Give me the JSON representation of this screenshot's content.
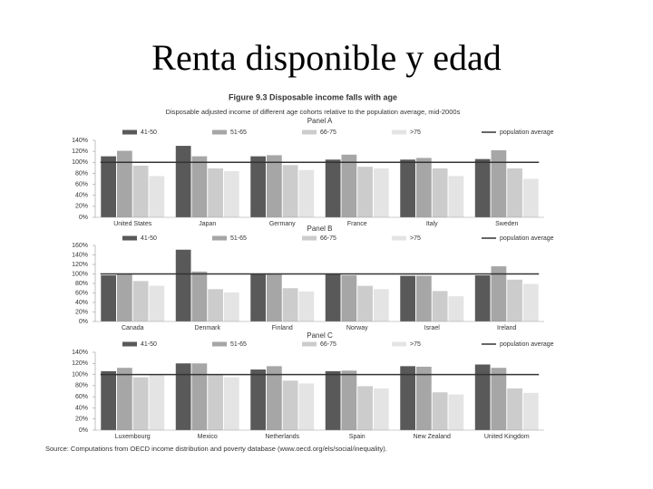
{
  "slide_title": "Renta disponible y edad",
  "figure_title": "Figure 9.3 Disposable income falls with age",
  "figure_subtitle": "Disposable adjusted income of different age cohorts relative to the population average, mid-2000s",
  "source": "Source: Computations from OECD income distribution and poverty database (www.oecd.org/els/social/inequality).",
  "chart_data": [
    {
      "type": "bar",
      "title": "Panel A",
      "categories": [
        "United States",
        "Japan",
        "Germany",
        "France",
        "Italy",
        "Sweden"
      ],
      "series": [
        {
          "name": "41-50",
          "color": "#595959",
          "values": [
            111,
            130,
            111,
            105,
            105,
            106
          ]
        },
        {
          "name": "51-65",
          "color": "#a6a6a6",
          "values": [
            121,
            111,
            113,
            114,
            108,
            122
          ]
        },
        {
          "name": "66-75",
          "color": "#cccccc",
          "values": [
            94,
            89,
            95,
            92,
            89,
            89
          ]
        },
        {
          "name": ">75",
          "color": "#e4e4e4",
          "values": [
            75,
            84,
            86,
            89,
            75,
            70
          ]
        }
      ],
      "reference_lines": [
        {
          "name": "population average",
          "value": 100,
          "color": "#333333"
        }
      ],
      "ylim": [
        0,
        140
      ],
      "yticks": [
        {
          "value": 0,
          "label": "0%"
        },
        {
          "value": 20,
          "label": "20%"
        },
        {
          "value": 40,
          "label": "40%"
        },
        {
          "value": 60,
          "label": "60%"
        },
        {
          "value": 80,
          "label": "80%"
        },
        {
          "value": 100,
          "label": "100%"
        },
        {
          "value": 120,
          "label": "120%"
        },
        {
          "value": 140,
          "label": "140%"
        }
      ]
    },
    {
      "type": "bar",
      "title": "Panel B",
      "categories": [
        "Canada",
        "Denmark",
        "Finland",
        "Norway",
        "Israel",
        "Ireland"
      ],
      "series": [
        {
          "name": "41-50",
          "color": "#595959",
          "values": [
            97,
            151,
            99,
            99,
            96,
            97
          ]
        },
        {
          "name": "51-65",
          "color": "#a6a6a6",
          "values": [
            101,
            105,
            101,
            97,
            96,
            116
          ]
        },
        {
          "name": "66-75",
          "color": "#cccccc",
          "values": [
            85,
            68,
            70,
            75,
            64,
            88
          ]
        },
        {
          "name": ">75",
          "color": "#e4e4e4",
          "values": [
            75,
            61,
            63,
            68,
            53,
            79
          ]
        }
      ],
      "reference_lines": [
        {
          "name": "population average",
          "value": 100,
          "color": "#333333"
        }
      ],
      "ylim": [
        0,
        160
      ],
      "yticks": [
        {
          "value": 0,
          "label": "0%"
        },
        {
          "value": 20,
          "label": "20%"
        },
        {
          "value": 40,
          "label": "40%"
        },
        {
          "value": 60,
          "label": "60%"
        },
        {
          "value": 80,
          "label": "80%"
        },
        {
          "value": 100,
          "label": "100%"
        },
        {
          "value": 120,
          "label": "120%"
        },
        {
          "value": 140,
          "label": "140%"
        },
        {
          "value": 160,
          "label": "160%"
        }
      ]
    },
    {
      "type": "bar",
      "title": "Panel C",
      "categories": [
        "Luxembourg",
        "Mexico",
        "Netherlands",
        "Spain",
        "New Zealand",
        "United Kingdom"
      ],
      "series": [
        {
          "name": "41-50",
          "color": "#595959",
          "values": [
            106,
            120,
            109,
            106,
            115,
            118
          ]
        },
        {
          "name": "51-65",
          "color": "#a6a6a6",
          "values": [
            112,
            120,
            115,
            107,
            114,
            112
          ]
        },
        {
          "name": "66-75",
          "color": "#cccccc",
          "values": [
            95,
            101,
            89,
            79,
            68,
            75
          ]
        },
        {
          "name": ">75",
          "color": "#e4e4e4",
          "values": [
            100,
            95,
            84,
            75,
            64,
            67
          ]
        }
      ],
      "reference_lines": [
        {
          "name": "population average",
          "value": 100,
          "color": "#333333"
        }
      ],
      "ylim": [
        0,
        140
      ],
      "yticks": [
        {
          "value": 0,
          "label": "0%"
        },
        {
          "value": 20,
          "label": "20%"
        },
        {
          "value": 40,
          "label": "40%"
        },
        {
          "value": 60,
          "label": "60%"
        },
        {
          "value": 80,
          "label": "80%"
        },
        {
          "value": 100,
          "label": "100%"
        },
        {
          "value": 120,
          "label": "120%"
        },
        {
          "value": 140,
          "label": "140%"
        }
      ]
    }
  ]
}
